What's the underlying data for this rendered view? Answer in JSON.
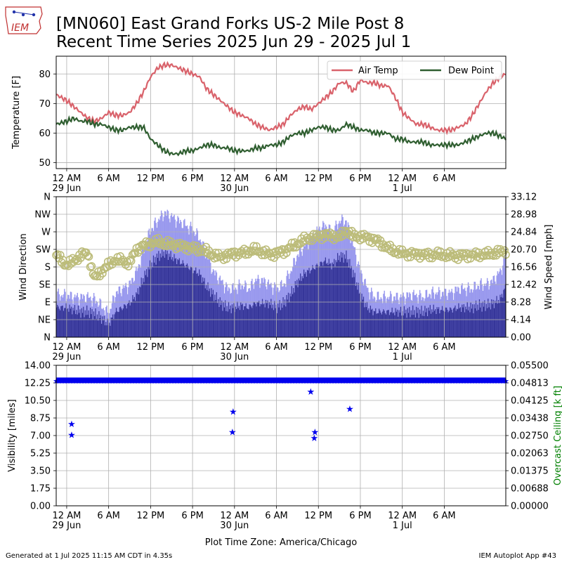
{
  "header": {
    "logo_text": "IEM",
    "title_line1": "[MN060] East Grand Forks US-2 Mile Post 8",
    "title_line2": "Recent Time Series 2025 Jun 29 - 2025 Jul 1"
  },
  "footer": {
    "left": "Generated at 1 Jul 2025 11:15 AM CDT in 4.35s",
    "right": "IEM Autoplot App #43",
    "xlabel": "Plot Time Zone: America/Chicago"
  },
  "colors": {
    "air_temp": "#d9626b",
    "dew_point": "#2f5e30",
    "wind_gust": "#9999ee",
    "wind_speed": "#363699",
    "wind_dir": "#bcbc7a",
    "visibility": "#0000ee",
    "ceiling_axis": "#008000",
    "grid": "#b0b0b0"
  },
  "time_axis": {
    "hours_start": -1.5,
    "hours_end": 62.8,
    "ticks": [
      {
        "h": 0,
        "label": "12 AM",
        "date": "29 Jun"
      },
      {
        "h": 6,
        "label": "6 AM",
        "date": ""
      },
      {
        "h": 12,
        "label": "12 PM",
        "date": ""
      },
      {
        "h": 18,
        "label": "6 PM",
        "date": ""
      },
      {
        "h": 24,
        "label": "12 AM",
        "date": "30 Jun"
      },
      {
        "h": 30,
        "label": "6 AM",
        "date": ""
      },
      {
        "h": 36,
        "label": "12 PM",
        "date": ""
      },
      {
        "h": 42,
        "label": "6 PM",
        "date": ""
      },
      {
        "h": 48,
        "label": "12 AM",
        "date": "1 Jul"
      },
      {
        "h": 54,
        "label": "6 AM",
        "date": ""
      }
    ]
  },
  "chart_data": [
    {
      "type": "line",
      "ylabel": "Temperature [F]",
      "ylim": [
        48,
        86
      ],
      "yticks": [
        50,
        60,
        70,
        80
      ],
      "grid": true,
      "legend_placement": "top-right",
      "series": [
        {
          "name": "Air Temp",
          "x": [
            -1.5,
            0,
            1,
            2,
            3,
            4,
            5,
            6,
            7,
            8,
            9,
            10,
            11,
            12,
            13,
            14,
            15,
            16,
            17,
            18,
            19,
            20,
            21,
            22,
            23,
            24,
            25,
            26,
            27,
            28,
            29,
            30,
            31,
            32,
            33,
            34,
            35,
            36,
            37,
            38,
            39,
            40,
            41,
            42,
            43,
            44,
            45,
            46,
            47,
            48,
            49,
            50,
            51,
            52,
            53,
            54,
            55,
            56,
            57,
            58,
            59,
            60,
            61,
            62,
            62.8
          ],
          "y": [
            73,
            71,
            69,
            67,
            65,
            64,
            65,
            67,
            66,
            66,
            67,
            70,
            74,
            79,
            82,
            83,
            83,
            82,
            81,
            80,
            79,
            75,
            73,
            71,
            69,
            67,
            66,
            65,
            63,
            62,
            61,
            62,
            63,
            66,
            68,
            69,
            68,
            70,
            72,
            74,
            77,
            77,
            74,
            78,
            77,
            77,
            76,
            76,
            72,
            67,
            65,
            63,
            63,
            62,
            61,
            61,
            61,
            62,
            63,
            66,
            70,
            74,
            77,
            79,
            80
          ]
        },
        {
          "name": "Dew Point",
          "x": [
            -1.5,
            0,
            1,
            2,
            3,
            4,
            5,
            6,
            7,
            8,
            9,
            10,
            11,
            12,
            13,
            14,
            15,
            16,
            17,
            18,
            19,
            20,
            21,
            22,
            23,
            24,
            25,
            26,
            27,
            28,
            29,
            30,
            31,
            32,
            33,
            34,
            35,
            36,
            37,
            38,
            39,
            40,
            41,
            42,
            43,
            44,
            45,
            46,
            47,
            48,
            49,
            50,
            51,
            52,
            53,
            54,
            55,
            56,
            57,
            58,
            59,
            60,
            61,
            62,
            62.8
          ],
          "y": [
            63,
            64,
            65,
            64,
            64,
            63,
            63,
            62,
            61,
            61,
            62,
            62,
            62,
            58,
            56,
            54,
            53,
            53,
            54,
            54,
            55,
            56,
            56,
            55,
            55,
            54,
            54,
            54,
            55,
            55,
            56,
            56,
            57,
            59,
            60,
            60,
            61,
            62,
            62,
            61,
            61,
            63,
            62,
            61,
            61,
            60,
            60,
            60,
            58,
            58,
            57,
            57,
            57,
            56,
            56,
            56,
            56,
            56,
            57,
            58,
            59,
            60,
            60,
            59,
            58
          ]
        }
      ]
    },
    {
      "type": "bar",
      "ylabel": "Wind Direction",
      "ylabel_right": "Wind Speed [mph]",
      "yticks_dir": [
        "N",
        "NE",
        "E",
        "SE",
        "S",
        "SW",
        "W",
        "NW",
        "N"
      ],
      "ylim_dir": [
        0,
        360
      ],
      "ylim_speed": [
        0,
        33.12
      ],
      "yticks_speed": [
        "0.00",
        "4.14",
        "8.28",
        "12.42",
        "16.56",
        "20.70",
        "24.84",
        "28.98",
        "33.12"
      ],
      "grid": true,
      "series": [
        {
          "name": "Wind Gust",
          "x": [
            -1.5,
            0,
            1,
            2,
            3,
            4,
            5,
            6,
            7,
            8,
            9,
            10,
            11,
            12,
            13,
            14,
            15,
            16,
            17,
            18,
            19,
            20,
            21,
            22,
            23,
            24,
            25,
            26,
            27,
            28,
            29,
            30,
            31,
            32,
            33,
            34,
            35,
            36,
            37,
            38,
            39,
            40,
            41,
            42,
            43,
            44,
            45,
            46,
            47,
            48,
            49,
            50,
            51,
            52,
            53,
            54,
            55,
            56,
            57,
            58,
            59,
            60,
            61,
            62,
            62.8
          ],
          "y": [
            8.5,
            8.5,
            8,
            8,
            8,
            7.5,
            6,
            4,
            9,
            10,
            11,
            14,
            19,
            24,
            26,
            28,
            27,
            26,
            25,
            24,
            22,
            18,
            14,
            12,
            10,
            10,
            11,
            10,
            12,
            12,
            11,
            10,
            11,
            14,
            18,
            20,
            22,
            24,
            25,
            23,
            26,
            26,
            20,
            14,
            10,
            8,
            8,
            8,
            8,
            8,
            8.5,
            8.5,
            8,
            9,
            9,
            9,
            9,
            10,
            10,
            10,
            11,
            11,
            12,
            14,
            18
          ]
        },
        {
          "name": "Wind Speed",
          "x": [
            -1.5,
            0,
            1,
            2,
            3,
            4,
            5,
            6,
            7,
            8,
            9,
            10,
            11,
            12,
            13,
            14,
            15,
            16,
            17,
            18,
            19,
            20,
            21,
            22,
            23,
            24,
            25,
            26,
            27,
            28,
            29,
            30,
            31,
            32,
            33,
            34,
            35,
            36,
            37,
            38,
            39,
            40,
            41,
            42,
            43,
            44,
            45,
            46,
            47,
            48,
            49,
            50,
            51,
            52,
            53,
            54,
            55,
            56,
            57,
            58,
            59,
            60,
            61,
            62,
            62.8
          ],
          "y": [
            7,
            7,
            6.5,
            6,
            6,
            5.5,
            4.5,
            3,
            6,
            7,
            8,
            10,
            14,
            17,
            19,
            20,
            19,
            18,
            17,
            16,
            15,
            12,
            10,
            8,
            7,
            7,
            7.5,
            7,
            8,
            8,
            8,
            7,
            8,
            10,
            13,
            15,
            16,
            17,
            18,
            17,
            19,
            19,
            15,
            10,
            7,
            6,
            6,
            6,
            6,
            6,
            6,
            6,
            6,
            6.5,
            6.5,
            6.5,
            6.5,
            7,
            7,
            7,
            7.5,
            7.5,
            8,
            9,
            12
          ]
        },
        {
          "name": "Wind Direction",
          "type": "scatter",
          "x": [
            -1.5,
            0,
            1,
            2,
            3,
            4,
            5,
            6,
            7,
            8,
            9,
            10,
            11,
            12,
            13,
            14,
            15,
            16,
            17,
            18,
            19,
            20,
            21,
            22,
            23,
            24,
            25,
            26,
            27,
            28,
            29,
            30,
            31,
            32,
            33,
            34,
            35,
            36,
            37,
            38,
            39,
            40,
            41,
            42,
            43,
            44,
            45,
            46,
            47,
            48,
            49,
            50,
            51,
            52,
            53,
            54,
            55,
            56,
            57,
            58,
            59,
            60,
            61,
            62,
            62.8
          ],
          "y": [
            210,
            185,
            195,
            210,
            215,
            150,
            170,
            185,
            200,
            195,
            190,
            225,
            235,
            240,
            245,
            240,
            238,
            235,
            232,
            228,
            225,
            220,
            210,
            205,
            210,
            215,
            215,
            220,
            225,
            218,
            212,
            215,
            220,
            230,
            240,
            250,
            255,
            258,
            262,
            260,
            255,
            275,
            258,
            258,
            255,
            250,
            240,
            228,
            220,
            215,
            213,
            213,
            212,
            210,
            212,
            210,
            210,
            208,
            210,
            210,
            211,
            212,
            215,
            218,
            222
          ]
        }
      ]
    },
    {
      "type": "scatter",
      "ylabel": "Visibility [miles]",
      "ylabel_right": "Overcast Ceiling [k ft]",
      "ylim": [
        0,
        14
      ],
      "yticks": [
        "0.00",
        "1.75",
        "3.50",
        "5.25",
        "7.00",
        "8.75",
        "10.50",
        "12.25",
        "14.00"
      ],
      "ylim_right": [
        0,
        0.055
      ],
      "yticks_right": [
        "0.00000",
        "0.00688",
        "0.01375",
        "0.02063",
        "0.02750",
        "0.03438",
        "0.04125",
        "0.04813",
        "0.05500"
      ],
      "grid": true,
      "series": [
        {
          "name": "Visibility",
          "baseline": {
            "x_start": -1.5,
            "x_end": 62.8,
            "y": 12.5
          },
          "x": [
            0.7,
            0.7,
            23.7,
            23.8,
            34.9,
            35.4,
            35.5,
            40.5
          ],
          "y": [
            8.2,
            7.1,
            7.4,
            9.4,
            11.4,
            6.8,
            7.4,
            9.7
          ]
        }
      ]
    }
  ]
}
